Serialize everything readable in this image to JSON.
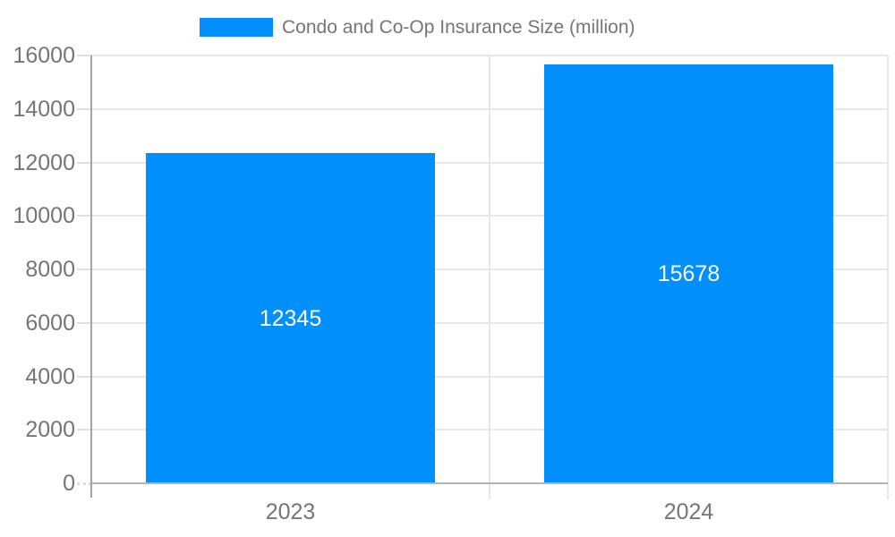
{
  "chart_data": {
    "type": "bar",
    "title": "Condo and Co-Op Insurance Size (million)",
    "legend": {
      "label": "Condo and Co-Op Insurance Size (million)",
      "position": "top"
    },
    "categories": [
      "2023",
      "2024"
    ],
    "values": [
      12345,
      15678
    ],
    "value_labels": [
      "12345",
      "15678"
    ],
    "xlabel": "",
    "ylabel": "",
    "ylim": [
      0,
      16000
    ],
    "ytick_step": 2000,
    "yticks": [
      0,
      2000,
      4000,
      6000,
      8000,
      10000,
      12000,
      14000,
      16000
    ],
    "ytick_labels": [
      "0",
      "2000",
      "4000",
      "6000",
      "8000",
      "10000",
      "12000",
      "14000",
      "16000"
    ],
    "grid": true,
    "colors": {
      "bar": "#008FFB",
      "value_label": "#ffffff",
      "axis_text": "#757575",
      "gridline": "#e7e7e7",
      "y_axis_line": "#a3a3a3",
      "baseline": "#b2b2b2",
      "tick": "#e0e0e0",
      "background": "#ffffff"
    }
  }
}
